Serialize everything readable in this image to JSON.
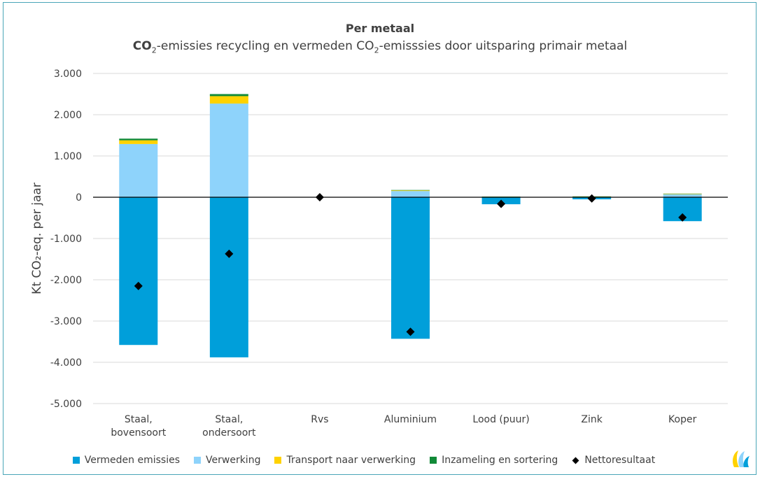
{
  "chart_data": {
    "type": "bar",
    "stacked": true,
    "title": "Per metaal",
    "subtitle": {
      "before": "CO",
      "sub1": "2",
      "middle": "-emissies recycling en vermeden CO",
      "sub2": "2",
      "after": "-emisssies door uitsparing primair metaal"
    },
    "ylabel": "Kt CO₂-eq. per jaar",
    "ylim": [
      -5000,
      3000
    ],
    "yticks": [
      3000,
      2000,
      1000,
      0,
      -1000,
      -2000,
      -3000,
      -4000,
      -5000
    ],
    "ytick_labels": [
      "3.000",
      "2.000",
      "1.000",
      "0",
      "-1.000",
      "-2.000",
      "-3.000",
      "-4.000",
      "-5.000"
    ],
    "categories": [
      [
        "Staal,",
        "bovensoort"
      ],
      [
        "Staal,",
        "ondersoort"
      ],
      [
        "Rvs"
      ],
      [
        "Aluminium"
      ],
      [
        "Lood (puur)"
      ],
      [
        "Zink"
      ],
      [
        "Koper"
      ]
    ],
    "series": [
      {
        "name": "Vermeden emissies",
        "color": "#009fda",
        "values": [
          -3580,
          -3880,
          0,
          -3430,
          -170,
          -50,
          -580
        ]
      },
      {
        "name": "Verwerking",
        "color": "#8ed3fb",
        "values": [
          1290,
          2270,
          0,
          150,
          10,
          15,
          70
        ]
      },
      {
        "name": "Transport naar verwerking",
        "color": "#ffd200",
        "values": [
          90,
          180,
          0,
          15,
          3,
          3,
          10
        ]
      },
      {
        "name": "Inzameling en sortering",
        "color": "#118a38",
        "values": [
          40,
          50,
          0,
          10,
          2,
          2,
          8
        ]
      }
    ],
    "net_result": {
      "name": "Nettoresultaat",
      "color": "#000000",
      "values": [
        -2150,
        -1370,
        0,
        -3260,
        -160,
        -30,
        -490
      ]
    },
    "grid": true,
    "legend_position": "bottom"
  }
}
